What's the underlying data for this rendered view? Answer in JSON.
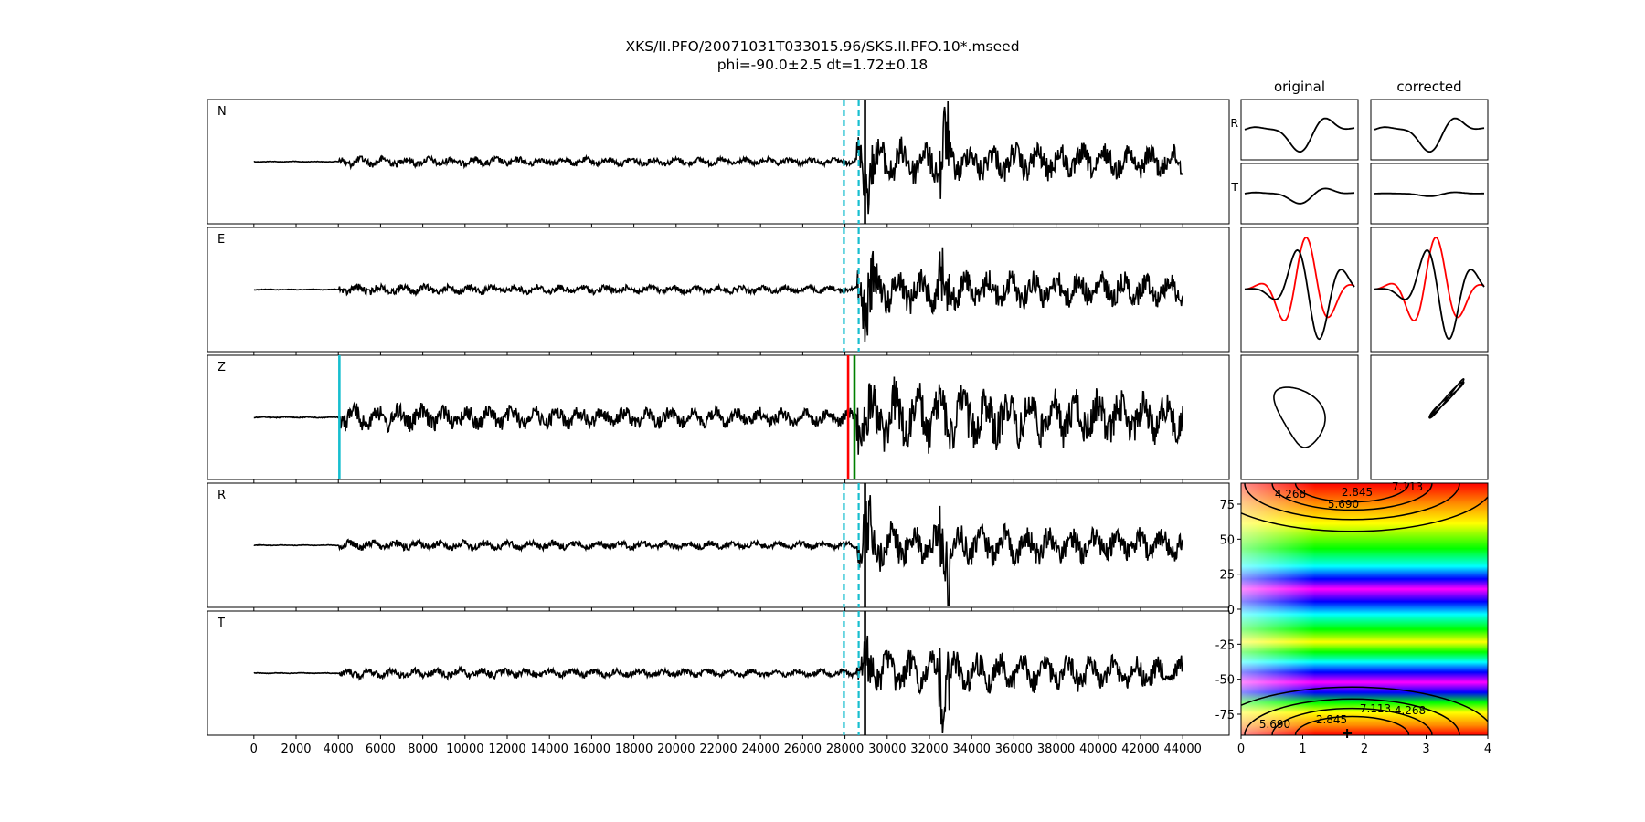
{
  "figure": {
    "title": "XKS/II.PFO/20071031T033015.96/SKS.II.PFO.10*.mseed",
    "subtitle": "phi=-90.0±2.5 dt=1.72±0.18"
  },
  "chart_data": [
    {
      "type": "line",
      "name": "waveforms",
      "panels": [
        {
          "label": "N",
          "picks": [
            {
              "x": 27950,
              "color": "#17becf",
              "style": "dashed"
            },
            {
              "x": 28650,
              "color": "#17becf",
              "style": "dashed"
            },
            {
              "x": 28950,
              "color": "#000000",
              "style": "solid"
            }
          ]
        },
        {
          "label": "E",
          "picks": [
            {
              "x": 27950,
              "color": "#17becf",
              "style": "dashed"
            },
            {
              "x": 28650,
              "color": "#17becf",
              "style": "dashed"
            }
          ]
        },
        {
          "label": "Z",
          "picks": [
            {
              "x": 4050,
              "color": "#17becf",
              "style": "solid"
            },
            {
              "x": 28150,
              "color": "#ff0000",
              "style": "solid"
            },
            {
              "x": 28450,
              "color": "#008000",
              "style": "solid"
            }
          ]
        },
        {
          "label": "R",
          "picks": [
            {
              "x": 27950,
              "color": "#17becf",
              "style": "dashed"
            },
            {
              "x": 28650,
              "color": "#17becf",
              "style": "dashed"
            },
            {
              "x": 28950,
              "color": "#000000",
              "style": "solid"
            }
          ]
        },
        {
          "label": "T",
          "picks": [
            {
              "x": 27950,
              "color": "#17becf",
              "style": "dashed"
            },
            {
              "x": 28650,
              "color": "#17becf",
              "style": "dashed"
            },
            {
              "x": 28950,
              "color": "#000000",
              "style": "solid"
            }
          ]
        }
      ],
      "xlim": [
        -2200,
        46200
      ],
      "x_ticks": [
        0,
        2000,
        4000,
        6000,
        8000,
        10000,
        12000,
        14000,
        16000,
        18000,
        20000,
        22000,
        24000,
        26000,
        28000,
        30000,
        32000,
        34000,
        36000,
        38000,
        40000,
        42000,
        44000
      ],
      "data_range": [
        0,
        44000
      ],
      "trace_color": "#000000"
    },
    {
      "type": "line",
      "name": "particle-motion-grid",
      "columns": [
        "original",
        "corrected"
      ],
      "rows": [
        "R",
        "T",
        "",
        ""
      ],
      "series_colors": [
        "#000000",
        "#ff0000"
      ]
    },
    {
      "type": "heatmap",
      "name": "error-surface",
      "xlim": [
        0,
        4
      ],
      "ylim": [
        -90,
        90
      ],
      "x_ticks": [
        0,
        1,
        2,
        3,
        4
      ],
      "y_ticks": [
        75,
        50,
        25,
        0,
        -25,
        -50,
        -75
      ],
      "colormap": "hsv",
      "contour_labels": [
        "4.268",
        "2.845",
        "7.113",
        "5.690",
        "7.113",
        "5.690",
        "2.845",
        "4.268"
      ],
      "best_fit": {
        "dt": 1.72,
        "phi": -90.0
      }
    }
  ]
}
